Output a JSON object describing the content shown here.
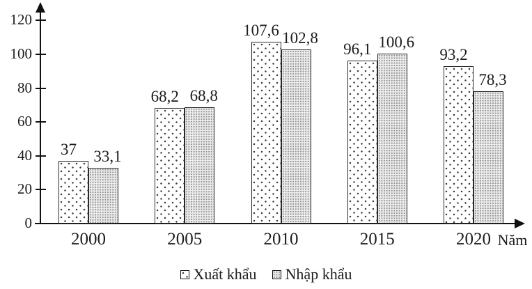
{
  "chart_data": {
    "type": "bar",
    "title": "",
    "categories": [
      "2000",
      "2005",
      "2010",
      "2015",
      "2020"
    ],
    "series": [
      {
        "name": "Xuất khẩu",
        "values": [
          37,
          68.2,
          107.6,
          96.1,
          93.2
        ],
        "value_labels": [
          "37",
          "68,2",
          "107,6",
          "96,1",
          "93,2"
        ],
        "pattern": "sparse-dots-on-white"
      },
      {
        "name": "Nhập khẩu",
        "values": [
          33.1,
          68.8,
          102.8,
          100.6,
          78.3
        ],
        "value_labels": [
          "33,1",
          "68,8",
          "102,8",
          "100,6",
          "78,3"
        ],
        "pattern": "dense-dots-on-gray"
      }
    ],
    "xlabel": "Năm",
    "ylabel": "",
    "ylim": [
      0,
      120
    ],
    "yticks": [
      "0",
      "20",
      "40",
      "60",
      "80",
      "100",
      "120"
    ],
    "legend": [
      "Xuất khẩu",
      "Nhập khẩu"
    ],
    "legend_position": "bottom-center",
    "grid": false,
    "decimal_separator": ","
  },
  "colors": {
    "axis": "#111111",
    "text": "#1c1c1c",
    "bar_border": "#2a2a2a",
    "export_fill": "#ffffff",
    "import_fill": "#ececec"
  }
}
